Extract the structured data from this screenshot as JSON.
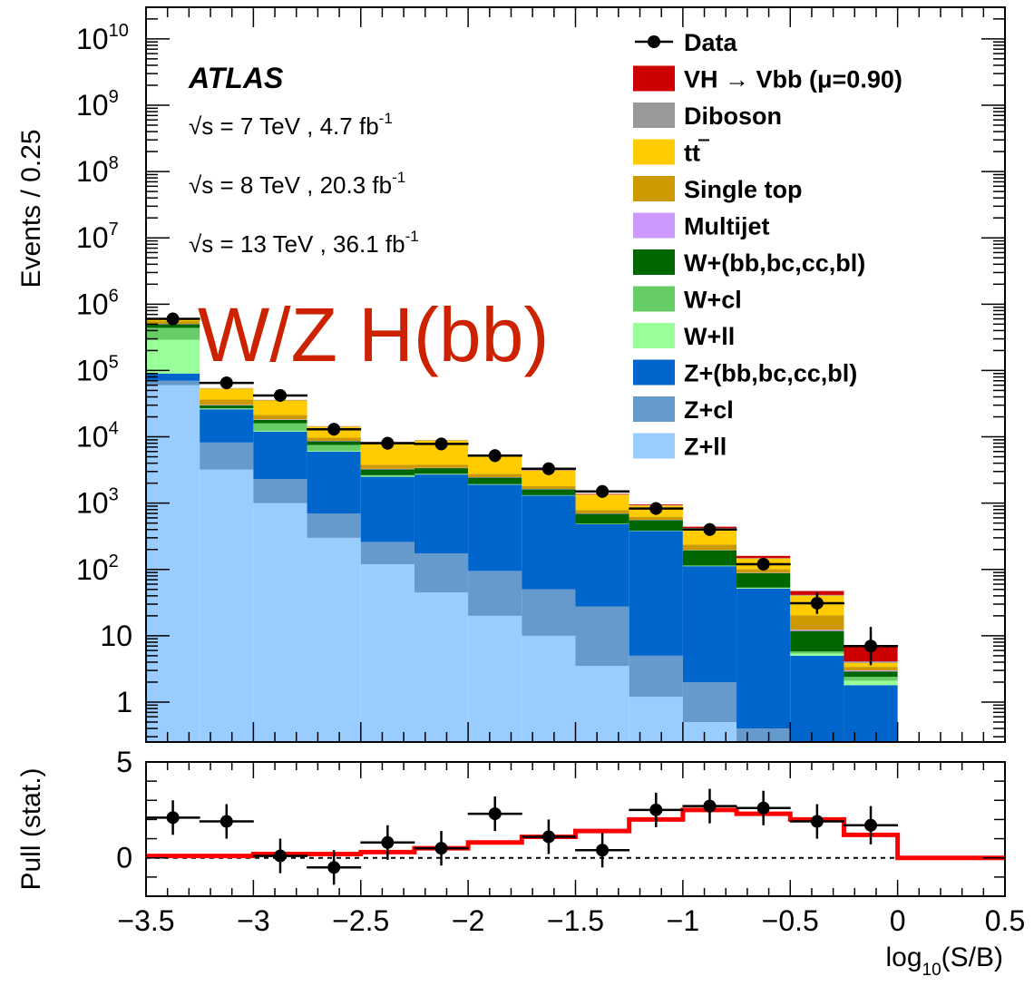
{
  "chart_data": [
    {
      "type": "bar",
      "stacked": true,
      "x_edges": [
        -3.5,
        -3.25,
        -3.0,
        -2.75,
        -2.5,
        -2.25,
        -2.0,
        -1.75,
        -1.5,
        -1.25,
        -1.0,
        -0.75,
        -0.5,
        -0.25,
        0.0,
        0.25,
        0.5
      ],
      "xlim": [
        -3.5,
        0.5
      ],
      "ylim": [
        0.25,
        30000000000.0
      ],
      "yscale": "log",
      "ylabel": "Events / 0.25",
      "y_ticks": [
        {
          "value": 1,
          "label": "1",
          "exp": ""
        },
        {
          "value": 10,
          "label": "10",
          "exp": ""
        },
        {
          "value": 100,
          "label": "10",
          "exp": "2"
        },
        {
          "value": 1000,
          "label": "10",
          "exp": "3"
        },
        {
          "value": 10000,
          "label": "10",
          "exp": "4"
        },
        {
          "value": 100000,
          "label": "10",
          "exp": "5"
        },
        {
          "value": 1000000,
          "label": "10",
          "exp": "6"
        },
        {
          "value": 10000000,
          "label": "10",
          "exp": "7"
        },
        {
          "value": 100000000,
          "label": "10",
          "exp": "8"
        },
        {
          "value": 1000000000,
          "label": "10",
          "exp": "9"
        },
        {
          "value": 10000000000,
          "label": "10",
          "exp": "10"
        }
      ],
      "series": [
        {
          "name": "Z+ll",
          "color": "#99ccff",
          "values": [
            60000,
            3200,
            1000,
            300,
            120,
            45,
            20,
            10,
            3.5,
            1.2,
            0.5,
            0.2,
            0,
            0,
            0,
            0
          ]
        },
        {
          "name": "Z+cl",
          "color": "#6699cc",
          "values": [
            10000,
            5000,
            1300,
            400,
            140,
            130,
            75,
            40,
            24,
            3.8,
            1.5,
            0.2,
            0,
            0,
            0,
            0
          ]
        },
        {
          "name": "Z+(bb,bc,cc,bl)",
          "color": "#0066cc",
          "values": [
            20000,
            17800,
            9700,
            5300,
            2240,
            2525,
            1805,
            1250,
            452,
            375,
            110,
            51,
            5,
            1.8,
            0,
            0
          ]
        },
        {
          "name": "W+ll",
          "color": "#99ff99",
          "values": [
            200000,
            500,
            300,
            150,
            80,
            40,
            20,
            10,
            5,
            3,
            1.5,
            1.0,
            0.4,
            0.3,
            0,
            0
          ]
        },
        {
          "name": "W+cl",
          "color": "#66cc66",
          "values": [
            150000,
            400,
            3700,
            1400,
            60,
            30,
            15,
            8,
            4,
            2,
            1,
            0.8,
            0.4,
            0.3,
            0,
            0
          ]
        },
        {
          "name": "W+(bb,bc,cc,bl)",
          "color": "#006600",
          "values": [
            60000,
            3000,
            2000,
            1000,
            600,
            600,
            500,
            300,
            200,
            170,
            80,
            35,
            6,
            0.5,
            0,
            0
          ]
        },
        {
          "name": "Multijet",
          "color": "#cc99ff",
          "values": [
            5000,
            500,
            300,
            150,
            50,
            40,
            30,
            20,
            10,
            5,
            2,
            1,
            0.5,
            0.1,
            0,
            0
          ]
        },
        {
          "name": "Single top",
          "color": "#cc9900",
          "values": [
            50000,
            6000,
            3000,
            1000,
            500,
            400,
            300,
            160,
            90,
            60,
            40,
            12,
            8,
            0.4,
            0,
            0
          ]
        },
        {
          "name": "tt",
          "color": "#ffcc00",
          "values": [
            40000,
            17000,
            14000,
            4500,
            4500,
            5000,
            2500,
            1300,
            550,
            300,
            180,
            45,
            20,
            0.5,
            0,
            0
          ]
        },
        {
          "name": "Diboson",
          "color": "#999999",
          "values": [
            5000,
            800,
            600,
            200,
            100,
            80,
            50,
            30,
            15,
            10,
            5,
            2,
            1,
            0.2,
            0,
            0
          ]
        },
        {
          "name": "VH → Vbb (μ=0.90)",
          "color": "#cc0000",
          "values": [
            100,
            80,
            100,
            60,
            40,
            40,
            35,
            30,
            25,
            25,
            20,
            12,
            6,
            3,
            0,
            0
          ]
        }
      ],
      "data_points": [
        {
          "x": -3.375,
          "y": 600000
        },
        {
          "x": -3.125,
          "y": 65000
        },
        {
          "x": -2.875,
          "y": 42000
        },
        {
          "x": -2.625,
          "y": 13000
        },
        {
          "x": -2.375,
          "y": 8000
        },
        {
          "x": -2.125,
          "y": 7800
        },
        {
          "x": -1.875,
          "y": 5200
        },
        {
          "x": -1.625,
          "y": 3300
        },
        {
          "x": -1.375,
          "y": 1500
        },
        {
          "x": -1.125,
          "y": 830
        },
        {
          "x": -0.875,
          "y": 400
        },
        {
          "x": -0.625,
          "y": 120
        },
        {
          "x": -0.375,
          "y": 31
        },
        {
          "x": -0.125,
          "y": 7
        }
      ],
      "legend": [
        {
          "label": "Data",
          "marker": "data"
        },
        {
          "label": "VH",
          "arrow": "→",
          "rest": "Vbb (μ=0.90)",
          "color": "#cc0000"
        },
        {
          "label": "Diboson",
          "color": "#999999"
        },
        {
          "label": "tt",
          "overline": "t",
          "color": "#ffcc00"
        },
        {
          "label": "Single top",
          "color": "#cc9900"
        },
        {
          "label": "Multijet",
          "color": "#cc99ff"
        },
        {
          "label": "W+(bb,bc,cc,bl)",
          "color": "#006600"
        },
        {
          "label": "W+cl",
          "color": "#66cc66"
        },
        {
          "label": "W+ll",
          "color": "#99ff99"
        },
        {
          "label": "Z+(bb,bc,cc,bl)",
          "color": "#0066cc"
        },
        {
          "label": "Z+cl",
          "color": "#6699cc"
        },
        {
          "label": "Z+ll",
          "color": "#99ccff"
        }
      ],
      "annotations": {
        "experiment": "ATLAS",
        "lumi_lines": [
          {
            "sqrt": "√",
            "s": "s = 7 TeV , 4.7 fb",
            "exp": "-1"
          },
          {
            "sqrt": "√",
            "s": "s = 8 TeV , 20.3 fb",
            "exp": "-1"
          },
          {
            "sqrt": "√",
            "s": "s = 13 TeV , 36.1 fb",
            "exp": "-1"
          }
        ],
        "overlay_text": "W/Z H(bb)"
      }
    },
    {
      "type": "line",
      "ylabel": "Pull (stat.)",
      "xlabel": "log",
      "xlabel_sub": "10",
      "xlabel_rest": "(S/B)",
      "xlim": [
        -3.5,
        0.5
      ],
      "ylim": [
        -2,
        5
      ],
      "y_ticks": [
        {
          "value": 0,
          "label": "0"
        },
        {
          "value": 5,
          "label": "5"
        }
      ],
      "x_ticks": [
        {
          "value": -3.5,
          "label": "−3.5"
        },
        {
          "value": -3,
          "label": "−3"
        },
        {
          "value": -2.5,
          "label": "−2.5"
        },
        {
          "value": -2,
          "label": "−2"
        },
        {
          "value": -1.5,
          "label": "−1.5"
        },
        {
          "value": -1,
          "label": "−1"
        },
        {
          "value": -0.5,
          "label": "−0.5"
        },
        {
          "value": 0,
          "label": "0"
        },
        {
          "value": 0.5,
          "label": "0.5"
        }
      ],
      "pull_points": [
        {
          "x": -3.375,
          "y": 2.1,
          "err": 0.9
        },
        {
          "x": -3.125,
          "y": 1.9,
          "err": 0.9
        },
        {
          "x": -2.875,
          "y": 0.1,
          "err": 0.9
        },
        {
          "x": -2.625,
          "y": -0.5,
          "err": 0.9
        },
        {
          "x": -2.375,
          "y": 0.8,
          "err": 0.9
        },
        {
          "x": -2.125,
          "y": 0.5,
          "err": 0.9
        },
        {
          "x": -1.875,
          "y": 2.3,
          "err": 0.9
        },
        {
          "x": -1.625,
          "y": 1.1,
          "err": 0.9
        },
        {
          "x": -1.375,
          "y": 0.4,
          "err": 0.9
        },
        {
          "x": -1.125,
          "y": 2.5,
          "err": 0.9
        },
        {
          "x": -0.875,
          "y": 2.7,
          "err": 0.9
        },
        {
          "x": -0.625,
          "y": 2.6,
          "err": 0.9
        },
        {
          "x": -0.375,
          "y": 1.9,
          "err": 0.9
        },
        {
          "x": -0.125,
          "y": 1.7,
          "err": 1.0
        }
      ],
      "signal_line": {
        "color": "#ff0000",
        "values": [
          0.1,
          0.1,
          0.2,
          0.2,
          0.3,
          0.5,
          0.8,
          1.1,
          1.4,
          2.0,
          2.5,
          2.3,
          2.0,
          1.2,
          0,
          0
        ]
      },
      "zero_line": "dashed"
    }
  ]
}
